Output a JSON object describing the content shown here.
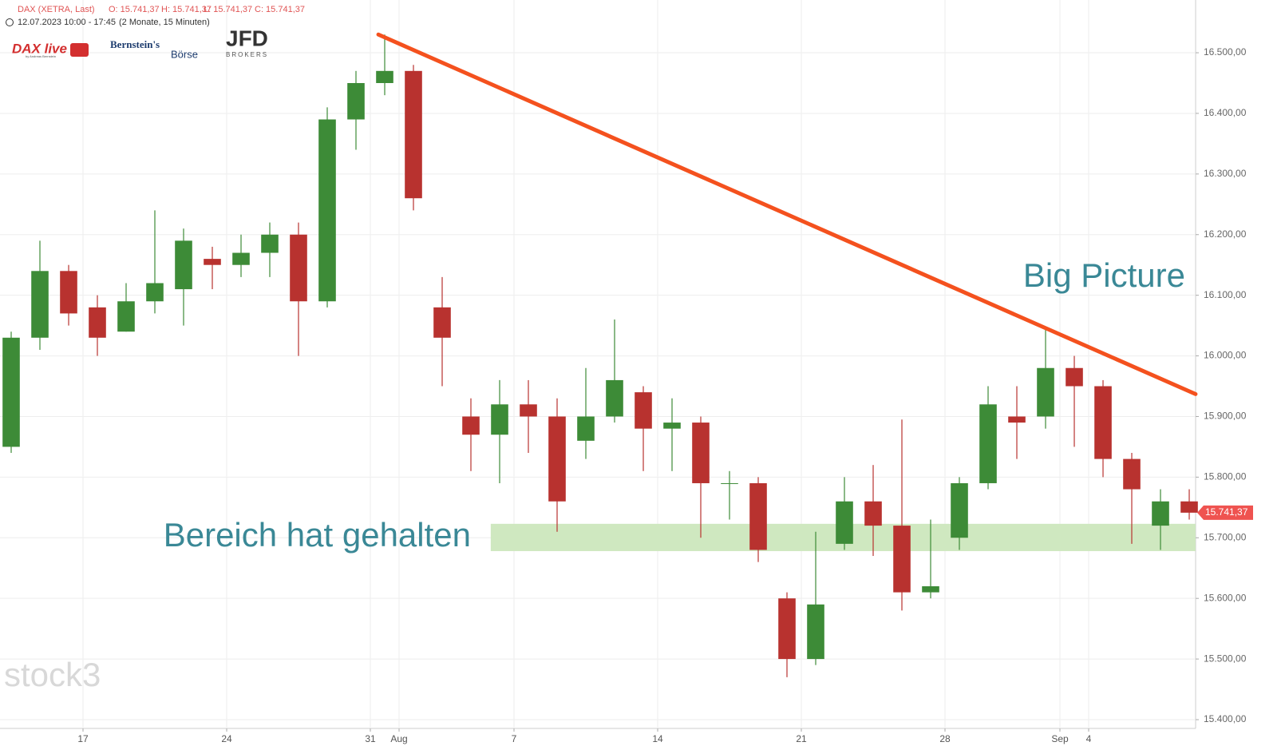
{
  "header": {
    "symbol": "DAX (XETRA, Last)",
    "open": "O: 15.741,37",
    "high": "H: 15.741,37",
    "low": "L: 15.741,37",
    "close": "C: 15.741,37",
    "range": "12.07.2023 10:00 - 17:45",
    "period": "(2 Monate, 15 Minuten)"
  },
  "logos": {
    "dax": "DAX live",
    "dax_sub": "by Andreas Bernstein",
    "bernstein": "Bernstein's",
    "boerse": "Börse",
    "jfd": "JFD",
    "jfd_sub": "BROKERS",
    "watermark": "stock3"
  },
  "chart_data": {
    "type": "candlestick",
    "x": [
      -2.5,
      -1.5,
      -0.5,
      0.5,
      1.5,
      2.5,
      3.5,
      4.5,
      5.5,
      6.5,
      7.5,
      8.5,
      9.5,
      10.5,
      11.5,
      12.5,
      13.5,
      14.5,
      15.5,
      16.5,
      17.5,
      18.5,
      19.5,
      20.5,
      21.5,
      22.5,
      23.5,
      24.5,
      25.5,
      26.5,
      27.5,
      28.5,
      29.5,
      30.5,
      31.5,
      32.5,
      33.5,
      34.5,
      35.5,
      36.5,
      37.5,
      38.5
    ],
    "open": [
      15850,
      16030,
      16140,
      16080,
      16040,
      16090,
      16110,
      16160,
      16150,
      16170,
      16200,
      16090,
      16390,
      16450,
      16470,
      16080,
      15900,
      15870,
      15920,
      15900,
      15860,
      15900,
      15940,
      15880,
      15890,
      15790,
      15790,
      15600,
      15500,
      15690,
      15760,
      15720,
      15610,
      15700,
      15790,
      15900,
      15900,
      15980,
      15950,
      15830,
      15720,
      15760
    ],
    "high": [
      16040,
      16190,
      16150,
      16100,
      16120,
      16240,
      16210,
      16180,
      16200,
      16220,
      16220,
      16410,
      16470,
      16530,
      16480,
      16130,
      15930,
      15960,
      15960,
      15930,
      15980,
      16060,
      15950,
      15930,
      15900,
      15810,
      15800,
      15610,
      15710,
      15800,
      15820,
      15895,
      15730,
      15800,
      15950,
      15950,
      16045,
      16000,
      15960,
      15840,
      15780,
      15780
    ],
    "low": [
      15840,
      16010,
      16050,
      16000,
      16040,
      16070,
      16050,
      16110,
      16130,
      16130,
      16000,
      16080,
      16340,
      16430,
      16240,
      15950,
      15810,
      15790,
      15840,
      15710,
      15830,
      15890,
      15810,
      15810,
      15700,
      15730,
      15660,
      15470,
      15490,
      15680,
      15670,
      15580,
      15600,
      15680,
      15780,
      15830,
      15880,
      15850,
      15800,
      15690,
      15680,
      15730
    ],
    "close": [
      16030,
      16140,
      16070,
      16030,
      16090,
      16120,
      16190,
      16150,
      16170,
      16200,
      16090,
      16390,
      16450,
      16470,
      16260,
      16030,
      15870,
      15920,
      15900,
      15760,
      15900,
      15960,
      15880,
      15890,
      15790,
      15790,
      15680,
      15500,
      15590,
      15760,
      15720,
      15610,
      15620,
      15790,
      15920,
      15890,
      15980,
      15950,
      15830,
      15780,
      15760,
      15741.37
    ],
    "up_color": "#3d8b37",
    "down_color": "#b8322f",
    "xlim": [
      -2.889,
      38.722
    ],
    "xticks": [
      {
        "value": 0,
        "label": "17"
      },
      {
        "value": 5,
        "label": "24"
      },
      {
        "value": 10,
        "label": "31"
      },
      {
        "value": 11,
        "label": "Aug"
      },
      {
        "value": 15,
        "label": "7"
      },
      {
        "value": 20,
        "label": "14"
      },
      {
        "value": 25,
        "label": "21"
      },
      {
        "value": 30,
        "label": "28"
      },
      {
        "value": 34,
        "label": "Sep"
      },
      {
        "value": 35,
        "label": "4"
      }
    ],
    "ylim": [
      15385.5,
      16587
    ],
    "yticks": [
      {
        "value": 15400,
        "label": "15.400,00"
      },
      {
        "value": 15500,
        "label": "15.500,00"
      },
      {
        "value": 15600,
        "label": "15.600,00"
      },
      {
        "value": 15700,
        "label": "15.700,00"
      },
      {
        "value": 15800,
        "label": "15.800,00"
      },
      {
        "value": 15900,
        "label": "15.900,00"
      },
      {
        "value": 16000,
        "label": "16.000,00"
      },
      {
        "value": 16100,
        "label": "16.100,00"
      },
      {
        "value": 16200,
        "label": "16.200,00"
      },
      {
        "value": 16300,
        "label": "16.300,00"
      },
      {
        "value": 16400,
        "label": "16.400,00"
      },
      {
        "value": 16500,
        "label": "16.500,00"
      }
    ],
    "grid": true,
    "last_price": {
      "value": 15741.37,
      "label": "15.741,37",
      "color": "#ef5350"
    },
    "trendline": {
      "x": [
        10.28,
        38.72
      ],
      "values": [
        16530,
        15937
      ],
      "color": "#f4511e",
      "label": "Big Picture"
    },
    "zone": {
      "x": [
        14.19,
        38.72
      ],
      "values": [
        15678,
        15723
      ],
      "color": "#cfe8c0",
      "label": "Bereich hat gehalten"
    }
  }
}
